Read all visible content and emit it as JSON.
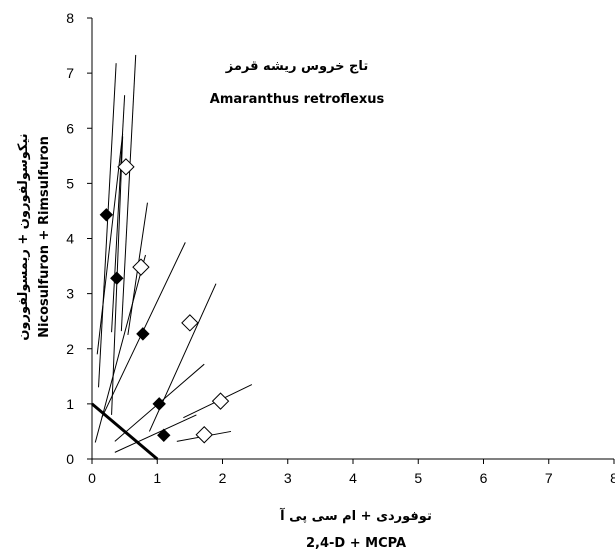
{
  "chart_data": {
    "type": "scatter",
    "title": "تاج خروس ریشه قرمز",
    "subtitle": "Amaranthus retroflexus",
    "xlabel_fa": "توفوردی + ام سی پی آ",
    "xlabel_en": "2,4-D + MCPA",
    "ylabel_fa": "نیکوسولفورون + ریمسولفورون",
    "ylabel_en": "Nicosulfuron + Rimsulfuron",
    "xlim": [
      0,
      8
    ],
    "ylim": [
      0,
      8
    ],
    "x_ticks": [
      "0",
      "1",
      "2",
      "3",
      "4",
      "5",
      "6",
      "7",
      "8"
    ],
    "y_ticks": [
      "0",
      "1",
      "2",
      "3",
      "4",
      "5",
      "6",
      "7",
      "8"
    ],
    "grid": false,
    "series": [
      {
        "marker": "filled-diamond",
        "color": "#000000",
        "points": [
          [
            0.22,
            4.43
          ],
          [
            0.38,
            3.28
          ],
          [
            0.78,
            2.27
          ],
          [
            1.03,
            1.0
          ],
          [
            1.1,
            0.43
          ]
        ]
      },
      {
        "marker": "open-diamond",
        "color": "#ffffff",
        "points": [
          [
            0.52,
            5.3
          ],
          [
            0.75,
            3.48
          ],
          [
            1.5,
            2.47
          ],
          [
            1.97,
            1.05
          ],
          [
            1.72,
            0.44
          ]
        ]
      }
    ],
    "ci_lines": [
      [
        [
          0.1,
          1.3
        ],
        [
          0.37,
          7.18
        ]
      ],
      [
        [
          0.08,
          1.9
        ],
        [
          0.47,
          5.9
        ]
      ],
      [
        [
          0.3,
          2.3
        ],
        [
          0.5,
          6.6
        ]
      ],
      [
        [
          0.45,
          2.32
        ],
        [
          0.67,
          7.33
        ]
      ],
      [
        [
          0.3,
          0.8
        ],
        [
          0.47,
          5.85
        ]
      ],
      [
        [
          0.55,
          2.25
        ],
        [
          0.85,
          4.65
        ]
      ],
      [
        [
          0.15,
          0.75
        ],
        [
          1.43,
          3.93
        ]
      ],
      [
        [
          0.05,
          0.3
        ],
        [
          0.82,
          3.7
        ]
      ],
      [
        [
          0.88,
          0.5
        ],
        [
          1.9,
          3.18
        ]
      ],
      [
        [
          0.35,
          0.32
        ],
        [
          1.72,
          1.72
        ]
      ],
      [
        [
          1.4,
          0.75
        ],
        [
          2.45,
          1.35
        ]
      ],
      [
        [
          0.35,
          0.12
        ],
        [
          1.6,
          0.8
        ]
      ],
      [
        [
          1.3,
          0.32
        ],
        [
          2.13,
          0.5
        ]
      ]
    ],
    "isobole": [
      [
        0,
        1
      ],
      [
        1,
        0
      ]
    ]
  }
}
